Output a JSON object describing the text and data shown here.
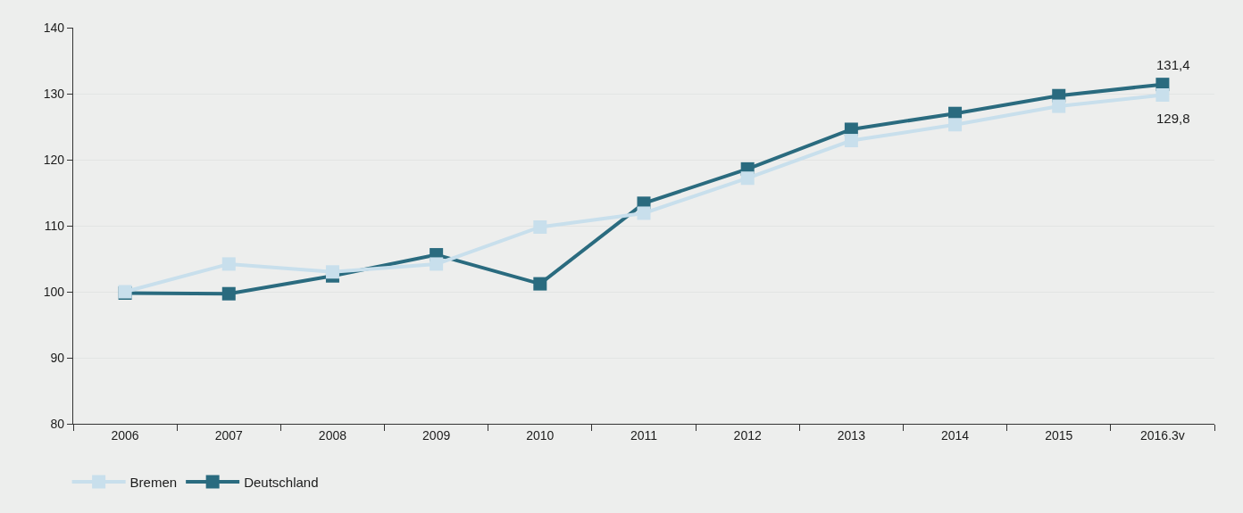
{
  "chart_data": {
    "type": "line",
    "categories": [
      "2006",
      "2007",
      "2008",
      "2009",
      "2010",
      "2011",
      "2012",
      "2013",
      "2014",
      "2015",
      "2016.3v"
    ],
    "series": [
      {
        "name": "Bremen",
        "color": "#c8dfec",
        "values": [
          100,
          104.2,
          103.0,
          104.2,
          109.8,
          111.9,
          117.2,
          122.9,
          125.3,
          128.1,
          129.8
        ],
        "value_labels": [
          null,
          null,
          null,
          null,
          null,
          null,
          null,
          null,
          null,
          null,
          "129,8"
        ]
      },
      {
        "name": "Deutschland",
        "color": "#2a6b7f",
        "values": [
          99.8,
          99.7,
          102.4,
          105.6,
          101.2,
          113.4,
          118.6,
          124.6,
          127.0,
          129.7,
          131.4
        ],
        "value_labels": [
          null,
          null,
          null,
          null,
          null,
          null,
          null,
          null,
          null,
          null,
          "131,4"
        ]
      }
    ],
    "ylim": [
      80,
      140
    ],
    "yticks": [
      80,
      90,
      100,
      110,
      120,
      130,
      140
    ],
    "grid": "y",
    "legend": "bottom left",
    "marker": "square",
    "line_style": "solid"
  }
}
